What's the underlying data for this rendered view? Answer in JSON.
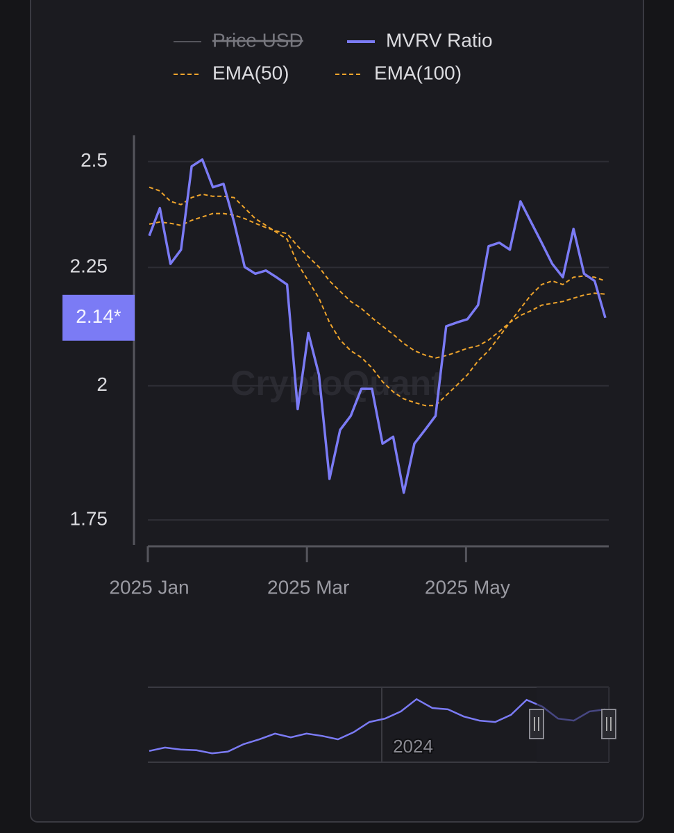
{
  "chart_data": {
    "type": "line",
    "watermark": "CryptoQuant",
    "log_scale": true,
    "grid": true,
    "ylim": [
      1.707,
      2.566
    ],
    "yticks": [
      1.75,
      2,
      2.25,
      2.5
    ],
    "categories": [
      "2025 Jan",
      null,
      null,
      null,
      null,
      null,
      null,
      null,
      null,
      null,
      null,
      null,
      null,
      null,
      null,
      "2025 Mar",
      null,
      null,
      null,
      null,
      null,
      null,
      null,
      null,
      null,
      null,
      null,
      null,
      null,
      null,
      "2025 May",
      null,
      null,
      null,
      null,
      null,
      null,
      null,
      null,
      null,
      null,
      null,
      null,
      null
    ],
    "series": [
      {
        "name": "Price USD",
        "color": "#55555c",
        "hidden": true
      },
      {
        "name": "MVRV Ratio",
        "color": "#7b7bf5",
        "style": "solid",
        "values": [
          2.322,
          2.387,
          2.258,
          2.29,
          2.488,
          2.505,
          2.437,
          2.445,
          2.354,
          2.251,
          2.236,
          2.243,
          2.228,
          2.212,
          1.954,
          2.108,
          2.022,
          1.823,
          1.914,
          1.941,
          1.994,
          1.994,
          1.888,
          1.901,
          1.798,
          1.888,
          1.914,
          1.941,
          2.122,
          2.13,
          2.137,
          2.167,
          2.298,
          2.306,
          2.29,
          2.403,
          2.354,
          2.306,
          2.258,
          2.228,
          2.338,
          2.236,
          2.22,
          2.14
        ],
        "value_labels": [
          null,
          null,
          null,
          null,
          null,
          null,
          null,
          null,
          null,
          null,
          null,
          null,
          null,
          null,
          null,
          null,
          null,
          null,
          null,
          null,
          null,
          null,
          null,
          null,
          null,
          null,
          null,
          null,
          null,
          null,
          null,
          null,
          null,
          null,
          null,
          null,
          null,
          null,
          null,
          null,
          null,
          null,
          null,
          "2.14*"
        ]
      },
      {
        "name": "EMA(50)",
        "color": "#f0a52c",
        "style": "dashed",
        "values": [
          2.437,
          2.428,
          2.403,
          2.395,
          2.412,
          2.42,
          2.415,
          2.415,
          2.412,
          2.387,
          2.362,
          2.346,
          2.33,
          2.314,
          2.258,
          2.22,
          2.182,
          2.13,
          2.093,
          2.071,
          2.057,
          2.036,
          2.008,
          1.988,
          1.974,
          1.967,
          1.961,
          1.961,
          1.981,
          2.001,
          2.022,
          2.05,
          2.071,
          2.1,
          2.13,
          2.16,
          2.189,
          2.212,
          2.22,
          2.212,
          2.228,
          2.231,
          2.228,
          2.22
        ]
      },
      {
        "name": "EMA(100)",
        "color": "#f0a52c",
        "style": "dashed",
        "values": [
          2.349,
          2.354,
          2.351,
          2.346,
          2.358,
          2.366,
          2.374,
          2.374,
          2.37,
          2.362,
          2.351,
          2.341,
          2.333,
          2.327,
          2.298,
          2.274,
          2.251,
          2.22,
          2.197,
          2.175,
          2.16,
          2.14,
          2.122,
          2.105,
          2.086,
          2.071,
          2.062,
          2.056,
          2.061,
          2.068,
          2.076,
          2.081,
          2.093,
          2.111,
          2.13,
          2.145,
          2.155,
          2.167,
          2.171,
          2.175,
          2.182,
          2.189,
          2.193,
          2.191
        ]
      }
    ],
    "navigator": {
      "label": "2024",
      "ylim": [
        1.0,
        3.2
      ],
      "values": [
        1.33,
        1.43,
        1.37,
        1.35,
        1.26,
        1.31,
        1.53,
        1.67,
        1.84,
        1.73,
        1.84,
        1.77,
        1.67,
        1.88,
        2.18,
        2.28,
        2.49,
        2.85,
        2.59,
        2.55,
        2.34,
        2.22,
        2.18,
        2.39,
        2.83,
        2.63,
        2.28,
        2.22,
        2.49,
        2.55
      ]
    }
  }
}
